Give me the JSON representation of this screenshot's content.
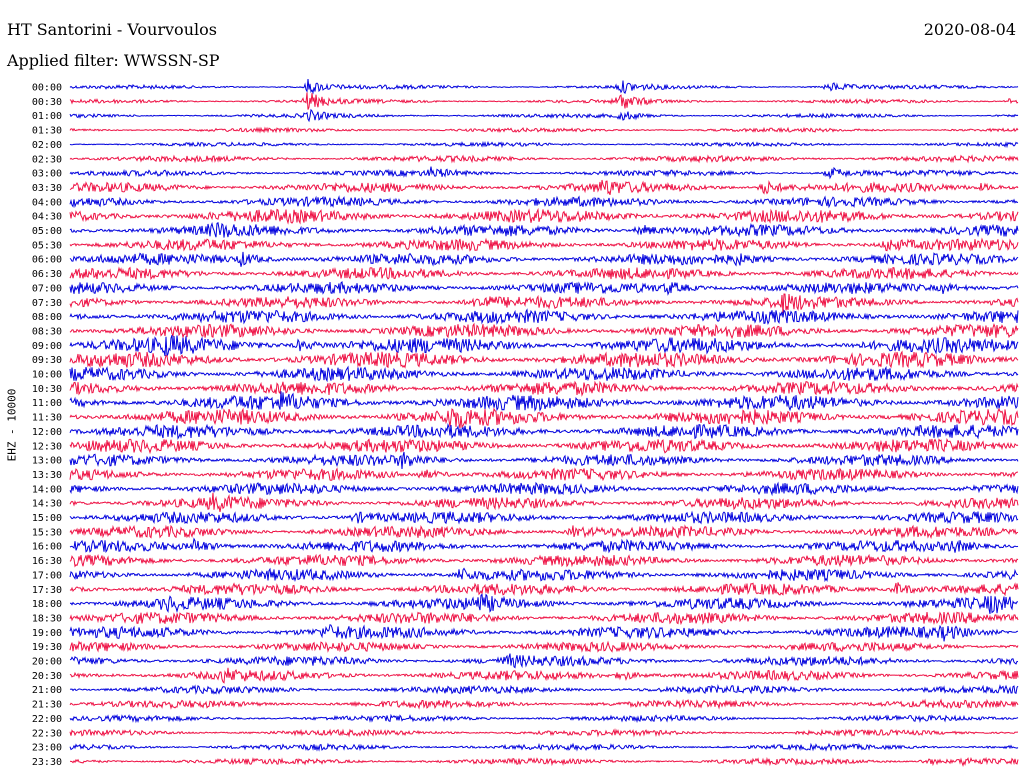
{
  "header": {
    "station": "HT Santorini - Vourvoulos",
    "date": "2020-08-04",
    "filter": "Applied filter: WWSSN-SP"
  },
  "chart_data": {
    "type": "line",
    "title": "HT Santorini - Vourvoulos",
    "subtitle": "Applied filter: WWSSN-SP",
    "ylabel": "EHZ - 10000",
    "rows": [
      "00:00",
      "00:30",
      "01:00",
      "01:30",
      "02:00",
      "02:30",
      "03:00",
      "03:30",
      "04:00",
      "04:30",
      "05:00",
      "05:30",
      "06:00",
      "06:30",
      "07:00",
      "07:30",
      "08:00",
      "08:30",
      "09:00",
      "09:30",
      "10:00",
      "10:30",
      "11:00",
      "11:30",
      "12:00",
      "12:30",
      "13:00",
      "13:30",
      "14:00",
      "14:30",
      "15:00",
      "15:30",
      "16:00",
      "16:30",
      "17:00",
      "17:30",
      "18:00",
      "18:30",
      "19:00",
      "19:30",
      "20:00",
      "20:30",
      "21:00",
      "21:30",
      "22:00",
      "22:30",
      "23:00",
      "23:30"
    ],
    "row_colors": [
      "#0000dd",
      "#ee1144"
    ],
    "noise_level": [
      2,
      2,
      2,
      2,
      2,
      3,
      3,
      5,
      5,
      7,
      6,
      6,
      6,
      6,
      6,
      6,
      7,
      7,
      8,
      8,
      7,
      7,
      8,
      8,
      7,
      7,
      6,
      6,
      6,
      6,
      6,
      6,
      6,
      6,
      6,
      6,
      6,
      6,
      6,
      5,
      5,
      5,
      4,
      4,
      3,
      3,
      3,
      3
    ],
    "events": [
      {
        "row": 0,
        "x": 0.25,
        "amp": 8
      },
      {
        "row": 0,
        "x": 0.58,
        "amp": 6
      },
      {
        "row": 0,
        "x": 0.8,
        "amp": 5
      },
      {
        "row": 1,
        "x": 0.25,
        "amp": 9
      },
      {
        "row": 1,
        "x": 0.58,
        "amp": 8
      },
      {
        "row": 1,
        "x": 0.99,
        "amp": 3
      },
      {
        "row": 2,
        "x": 0.25,
        "amp": 5
      },
      {
        "row": 2,
        "x": 0.58,
        "amp": 5
      },
      {
        "row": 6,
        "x": 0.38,
        "amp": 4
      },
      {
        "row": 6,
        "x": 0.8,
        "amp": 6
      },
      {
        "row": 7,
        "x": 0.56,
        "amp": 6
      },
      {
        "row": 7,
        "x": 0.73,
        "amp": 8
      },
      {
        "row": 7,
        "x": 0.96,
        "amp": 3
      },
      {
        "row": 10,
        "x": 0.15,
        "amp": 5
      },
      {
        "row": 10,
        "x": 0.6,
        "amp": 6
      },
      {
        "row": 11,
        "x": 0.86,
        "amp": 6
      },
      {
        "row": 12,
        "x": 0.18,
        "amp": 6
      },
      {
        "row": 12,
        "x": 0.7,
        "amp": 4
      },
      {
        "row": 14,
        "x": 0.63,
        "amp": 5
      },
      {
        "row": 14,
        "x": 0.92,
        "amp": 4
      },
      {
        "row": 15,
        "x": 0.43,
        "amp": 6
      },
      {
        "row": 15,
        "x": 0.75,
        "amp": 7
      },
      {
        "row": 18,
        "x": 0.1,
        "amp": 5
      },
      {
        "row": 18,
        "x": 0.24,
        "amp": 5
      },
      {
        "row": 22,
        "x": 0.22,
        "amp": 5
      },
      {
        "row": 23,
        "x": 0.4,
        "amp": 7
      },
      {
        "row": 26,
        "x": 0.35,
        "amp": 5
      },
      {
        "row": 27,
        "x": 0.37,
        "amp": 5
      },
      {
        "row": 29,
        "x": 0.15,
        "amp": 5
      },
      {
        "row": 30,
        "x": 0.3,
        "amp": 5
      },
      {
        "row": 31,
        "x": 0.53,
        "amp": 5
      },
      {
        "row": 32,
        "x": 0.13,
        "amp": 6
      },
      {
        "row": 32,
        "x": 0.93,
        "amp": 5
      },
      {
        "row": 34,
        "x": 0.41,
        "amp": 6
      },
      {
        "row": 35,
        "x": 0.87,
        "amp": 7
      },
      {
        "row": 36,
        "x": 0.1,
        "amp": 5
      },
      {
        "row": 36,
        "x": 0.43,
        "amp": 6
      },
      {
        "row": 36,
        "x": 0.97,
        "amp": 6
      },
      {
        "row": 38,
        "x": 0.27,
        "amp": 5
      },
      {
        "row": 38,
        "x": 0.92,
        "amp": 5
      },
      {
        "row": 40,
        "x": 0.46,
        "amp": 5
      },
      {
        "row": 41,
        "x": 0.16,
        "amp": 5
      },
      {
        "row": 41,
        "x": 0.58,
        "amp": 5
      },
      {
        "row": 47,
        "x": 0.9,
        "amp": 4
      },
      {
        "row": 47,
        "x": 0.94,
        "amp": 4
      }
    ]
  }
}
